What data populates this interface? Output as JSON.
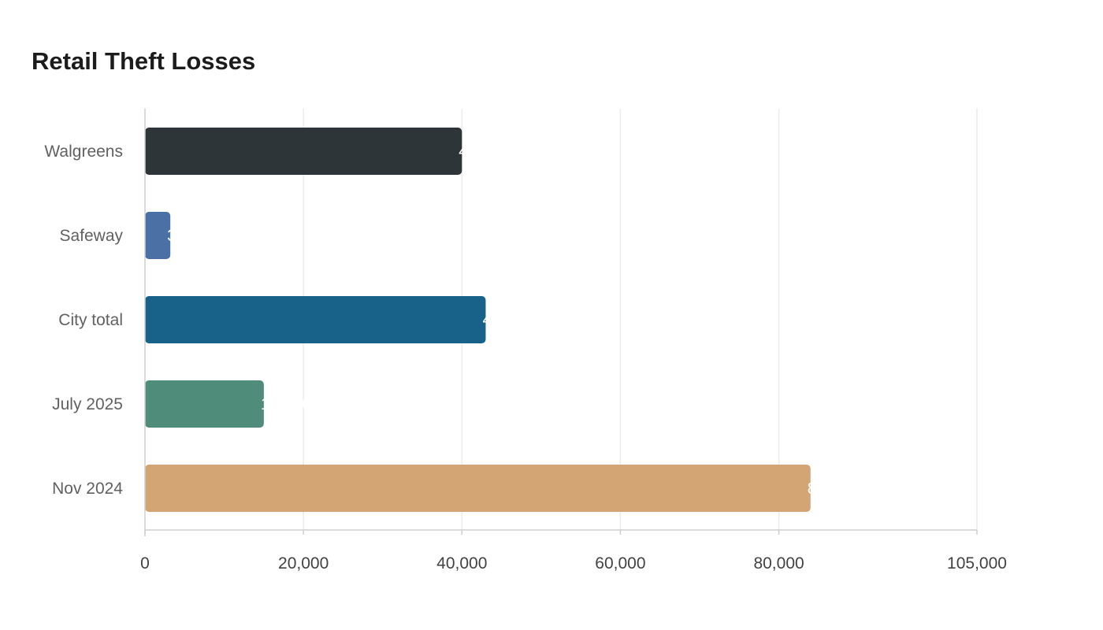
{
  "chart_data": {
    "type": "bar",
    "orientation": "horizontal",
    "title": "Retail Theft Losses",
    "xlabel": "",
    "ylabel": "",
    "categories": [
      "Walgreens",
      "Safeway",
      "City total",
      "July 2025",
      "Nov 2024"
    ],
    "values": [
      40000,
      3200,
      43000,
      15000,
      84000
    ],
    "colors": [
      "#2d3538",
      "#4b70a6",
      "#186189",
      "#4f8c79",
      "#d3a574"
    ],
    "xlim": [
      0,
      105000
    ],
    "xticks": [
      0,
      20000,
      40000,
      60000,
      80000,
      105000
    ],
    "tick_labels": [
      "0",
      "20,000",
      "40,000",
      "60,000",
      "80,000",
      "105,000"
    ],
    "grid": true,
    "legend": "none",
    "value_label_color": "#ffffff"
  }
}
